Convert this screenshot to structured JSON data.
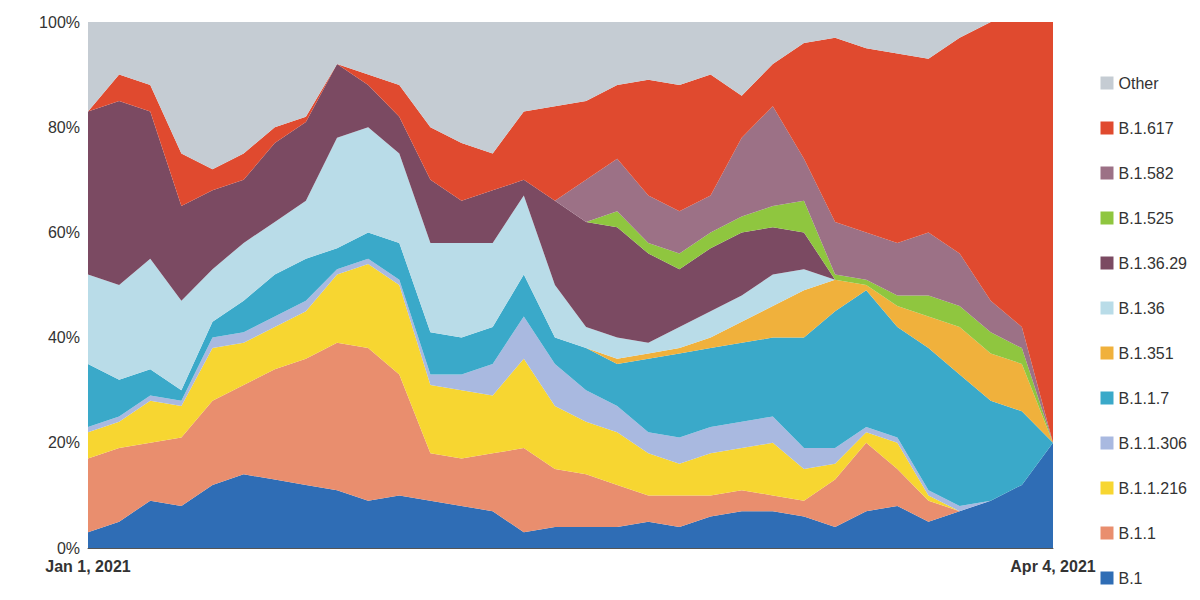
{
  "chart_data": {
    "type": "area",
    "stacked": true,
    "grid": false,
    "legend": "right",
    "categories": [
      "Jan 1, 2021",
      null,
      null,
      null,
      null,
      null,
      null,
      null,
      null,
      null,
      null,
      null,
      null,
      null,
      null,
      null,
      null,
      null,
      null,
      null,
      null,
      null,
      null,
      null,
      null,
      null,
      null,
      null,
      null,
      null,
      null,
      "Apr 4, 2021"
    ],
    "ylim": [
      0,
      100
    ],
    "yticks": [
      {
        "value": 0,
        "label": "0%"
      },
      {
        "value": 20,
        "label": "20%"
      },
      {
        "value": 40,
        "label": "40%"
      },
      {
        "value": 60,
        "label": "60%"
      },
      {
        "value": 80,
        "label": "80%"
      },
      {
        "value": 100,
        "label": "100%"
      }
    ],
    "series": [
      {
        "name": "B.1",
        "color": "#2f6db5",
        "values": [
          3,
          5,
          9,
          8,
          12,
          14,
          13,
          12,
          11,
          9,
          10,
          9,
          8,
          7,
          3,
          4,
          4,
          4,
          5,
          4,
          6,
          7,
          7,
          6,
          4,
          7,
          8,
          5,
          7,
          9,
          12,
          20
        ]
      },
      {
        "name": "B.1.1",
        "color": "#e98e6e",
        "values": [
          14,
          14,
          11,
          13,
          16,
          17,
          21,
          24,
          28,
          29,
          23,
          9,
          9,
          11,
          16,
          11,
          10,
          8,
          5,
          6,
          4,
          4,
          3,
          3,
          9,
          13,
          7,
          4,
          0,
          0,
          0,
          0
        ]
      },
      {
        "name": "B.1.1.216",
        "color": "#f7d631",
        "values": [
          5,
          5,
          8,
          6,
          10,
          8,
          8,
          9,
          13,
          16,
          17,
          13,
          13,
          11,
          17,
          12,
          10,
          10,
          8,
          6,
          8,
          8,
          10,
          6,
          3,
          2,
          5,
          1,
          0,
          0,
          0,
          0
        ]
      },
      {
        "name": "B.1.1.306",
        "color": "#a9b9e0",
        "values": [
          1,
          1,
          1,
          1,
          2,
          2,
          2,
          2,
          1,
          1,
          1,
          2,
          3,
          6,
          8,
          8,
          6,
          5,
          4,
          5,
          5,
          5,
          5,
          4,
          3,
          1,
          1,
          1,
          1,
          0,
          0,
          0
        ]
      },
      {
        "name": "B.1.1.7",
        "color": "#3aa9c9",
        "values": [
          12,
          7,
          5,
          2,
          3,
          6,
          8,
          8,
          4,
          5,
          7,
          8,
          7,
          7,
          8,
          5,
          8,
          8,
          14,
          16,
          15,
          15,
          15,
          21,
          26,
          26,
          21,
          27,
          25,
          19,
          14,
          0
        ]
      },
      {
        "name": "B.1.351",
        "color": "#f0b13c",
        "values": [
          0,
          0,
          0,
          0,
          0,
          0,
          0,
          0,
          0,
          0,
          0,
          0,
          0,
          0,
          0,
          0,
          0,
          1,
          1,
          1,
          2,
          4,
          6,
          9,
          6,
          1,
          4,
          6,
          9,
          9,
          9,
          0
        ]
      },
      {
        "name": "B.1.36",
        "color": "#b9dce8",
        "values": [
          17,
          18,
          21,
          17,
          10,
          11,
          10,
          11,
          21,
          20,
          17,
          17,
          18,
          16,
          15,
          10,
          4,
          4,
          2,
          4,
          5,
          5,
          6,
          4,
          0,
          0,
          0,
          0,
          0,
          0,
          0,
          0
        ]
      },
      {
        "name": "B.1.36.29",
        "color": "#7b4a62",
        "values": [
          31,
          35,
          28,
          18,
          15,
          12,
          15,
          15,
          14,
          8,
          7,
          12,
          8,
          10,
          3,
          16,
          20,
          21,
          17,
          11,
          12,
          12,
          9,
          7,
          0,
          0,
          0,
          0,
          0,
          0,
          0,
          0
        ]
      },
      {
        "name": "B.1.525",
        "color": "#8fc63f",
        "values": [
          0,
          0,
          0,
          0,
          0,
          0,
          0,
          0,
          0,
          0,
          0,
          0,
          0,
          0,
          0,
          0,
          0,
          3,
          2,
          3,
          3,
          3,
          4,
          6,
          1,
          1,
          2,
          4,
          4,
          4,
          3,
          0
        ]
      },
      {
        "name": "B.1.582",
        "color": "#9c7186",
        "values": [
          0,
          0,
          0,
          0,
          0,
          0,
          0,
          0,
          0,
          0,
          0,
          0,
          0,
          0,
          0,
          0,
          8,
          10,
          9,
          8,
          7,
          15,
          19,
          8,
          10,
          9,
          10,
          12,
          10,
          6,
          4,
          0
        ]
      },
      {
        "name": "B.1.617",
        "color": "#e04a2f",
        "values": [
          0,
          5,
          5,
          10,
          4,
          5,
          3,
          1,
          0,
          2,
          6,
          10,
          11,
          7,
          13,
          18,
          15,
          14,
          22,
          24,
          23,
          8,
          8,
          22,
          35,
          35,
          36,
          33,
          41,
          53,
          58,
          80
        ]
      },
      {
        "name": "Other",
        "color": "#c5ccd3",
        "values": [
          17,
          10,
          12,
          25,
          28,
          25,
          20,
          18,
          8,
          10,
          12,
          20,
          23,
          25,
          17,
          16,
          15,
          12,
          11,
          12,
          10,
          14,
          8,
          4,
          3,
          5,
          6,
          7,
          3,
          0,
          0,
          0
        ]
      }
    ]
  }
}
